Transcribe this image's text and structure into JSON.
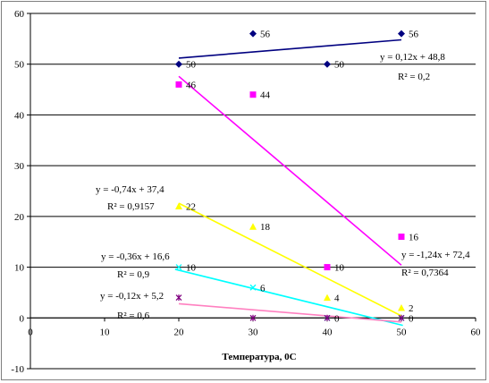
{
  "chart_data": {
    "type": "scatter",
    "title": "",
    "xlabel": "Температура, 0С",
    "ylabel": "",
    "xlim": [
      0,
      60
    ],
    "ylim": [
      -10,
      60
    ],
    "x_ticks": [
      "0",
      "10",
      "20",
      "30",
      "40",
      "50",
      "60"
    ],
    "y_ticks": [
      "-10",
      "0",
      "10",
      "20",
      "30",
      "40",
      "50",
      "60"
    ],
    "grid": "horizontal",
    "series": [
      {
        "color": "#000080",
        "marker": "diamond",
        "points": [
          [
            20,
            50
          ],
          [
            30,
            56
          ],
          [
            40,
            50
          ],
          [
            50,
            56
          ]
        ],
        "labels": [
          "50",
          "56",
          "50",
          "56"
        ],
        "trend": {
          "slope": 0.12,
          "intercept": 48.8,
          "equation": "y = 0,12x + 48,8",
          "r2": "R² = 0,2"
        }
      },
      {
        "color": "#ff00ff",
        "marker": "square",
        "points": [
          [
            20,
            46
          ],
          [
            30,
            44
          ],
          [
            40,
            10
          ],
          [
            50,
            16
          ]
        ],
        "labels": [
          "46",
          "44",
          "10",
          "16"
        ],
        "trend": {
          "slope": -1.24,
          "intercept": 72.4,
          "equation": "y = -1,24x + 72,4",
          "r2": "R² = 0,7364"
        }
      },
      {
        "color": "#ffff00",
        "marker": "triangle",
        "points": [
          [
            20,
            22
          ],
          [
            30,
            18
          ],
          [
            40,
            4
          ],
          [
            50,
            2
          ]
        ],
        "labels": [
          "22",
          "18",
          "4",
          "2"
        ],
        "trend": {
          "slope": -0.74,
          "intercept": 37.4,
          "equation": "y = -0,74x + 37,4",
          "r2": "R² = 0,9157"
        }
      },
      {
        "color": "#00ffff",
        "marker": "x",
        "points": [
          [
            20,
            10
          ],
          [
            30,
            6
          ],
          [
            40,
            0
          ],
          [
            50,
            0
          ]
        ],
        "labels": [
          "10",
          "6",
          "0",
          "0"
        ],
        "trend": {
          "slope": -0.36,
          "intercept": 16.6,
          "equation": "y = -0,36x + 16,6",
          "r2": "R² = 0,9"
        }
      },
      {
        "color": "#800080",
        "trend_color": "#ff80c0",
        "marker": "star",
        "points": [
          [
            20,
            4
          ],
          [
            30,
            0
          ],
          [
            40,
            0
          ],
          [
            50,
            0
          ]
        ],
        "labels": [
          "",
          "",
          "",
          ""
        ],
        "trend": {
          "slope": -0.12,
          "intercept": 5.2,
          "equation": "y = -0,12x + 5,2",
          "r2": "R² = 0,6"
        }
      }
    ]
  }
}
